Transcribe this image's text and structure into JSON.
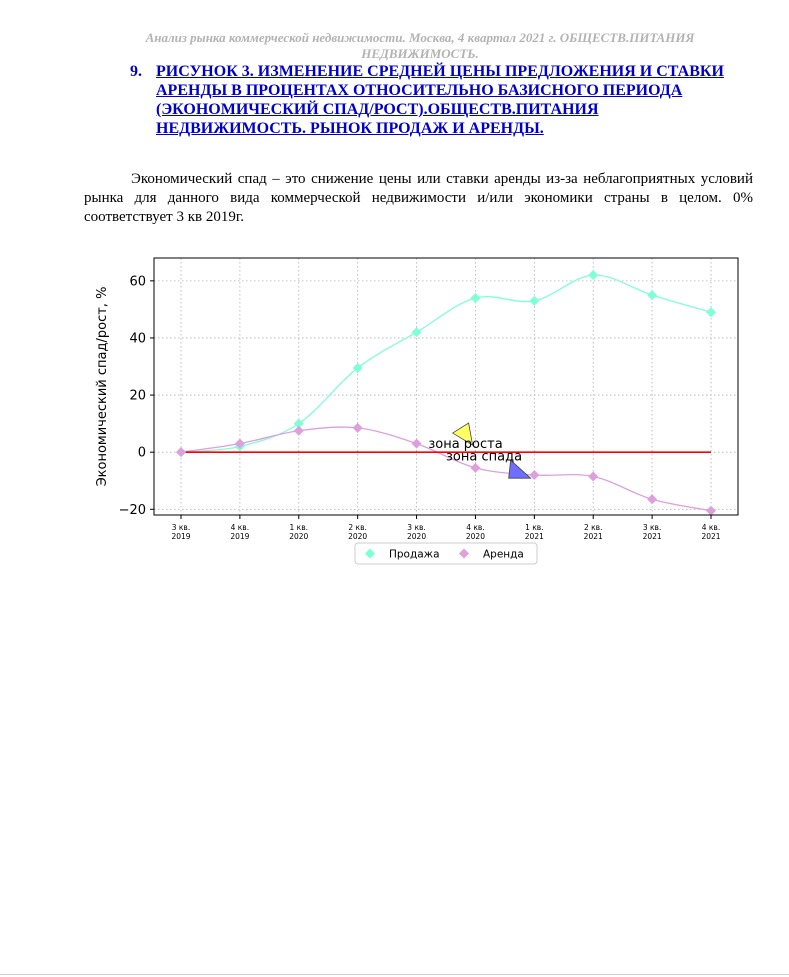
{
  "page": {
    "header_line1": "Анализ рынка коммерческой недвижимости.  Москва,  4 квартал 2021 г.   ОБЩЕСТВ.ПИТАНИЯ",
    "header_line2": "НЕДВИЖИМОСТЬ.",
    "heading_number": "9.",
    "heading_title": "РИСУНОК 3. ИЗМЕНЕНИЕ СРЕДНЕЙ ЦЕНЫ ПРЕДЛОЖЕНИЯ И СТАВКИ АРЕНДЫ В ПРОЦЕНТАХ ОТНОСИТЕЛЬНО БАЗИСНОГО ПЕРИОДА (ЭКОНОМИЧЕСКИЙ СПАД/РОСТ).ОБЩЕСТВ.ПИТАНИЯ НЕДВИЖИМОСТЬ. РЫНОК ПРОДАЖ И АРЕНДЫ.",
    "paragraph": "Экономический спад – это снижение цены или ставки аренды из-за неблагоприятных условий рынка для данного вида коммерческой недвижимости и/или экономики страны в целом. 0% соответствует 3 кв 2019г."
  },
  "chart_data": {
    "type": "line",
    "title": "",
    "xlabel": "",
    "ylabel": "Экономический спад/рост, %",
    "categories": [
      [
        "3 кв.",
        "2019"
      ],
      [
        "4 кв.",
        "2019"
      ],
      [
        "1 кв.",
        "2020"
      ],
      [
        "2 кв.",
        "2020"
      ],
      [
        "3 кв.",
        "2020"
      ],
      [
        "4 кв.",
        "2020"
      ],
      [
        "1 кв.",
        "2021"
      ],
      [
        "2 кв.",
        "2021"
      ],
      [
        "3 кв.",
        "2021"
      ],
      [
        "4 кв.",
        "2021"
      ]
    ],
    "ylim": [
      -22,
      68
    ],
    "yticks": [
      -20,
      0,
      20,
      40,
      60
    ],
    "grid": true,
    "legend_position": "bottom-center",
    "series": [
      {
        "name": "Продажа",
        "color": "#7fffd4",
        "values": [
          0,
          2,
          10,
          29.5,
          42,
          54,
          53,
          62,
          55,
          49
        ]
      },
      {
        "name": "Аренда",
        "color": "#dda0dd",
        "values": [
          0,
          3,
          7.5,
          8.5,
          3,
          -5.5,
          -8,
          -8.5,
          -16.5,
          -20.5
        ]
      }
    ],
    "baseline": {
      "value": 0,
      "color": "#ff0000"
    },
    "annotations": [
      {
        "text": "зона роста",
        "x": 4.2,
        "y": 1.5,
        "marker_color": "#ffff66",
        "marker_x": 4.85,
        "marker_y": 6
      },
      {
        "text": "зона спада",
        "x": 4.5,
        "y": -3,
        "marker_color": "#6f6fff",
        "marker_x": 5.7,
        "marker_y": -7
      }
    ]
  }
}
